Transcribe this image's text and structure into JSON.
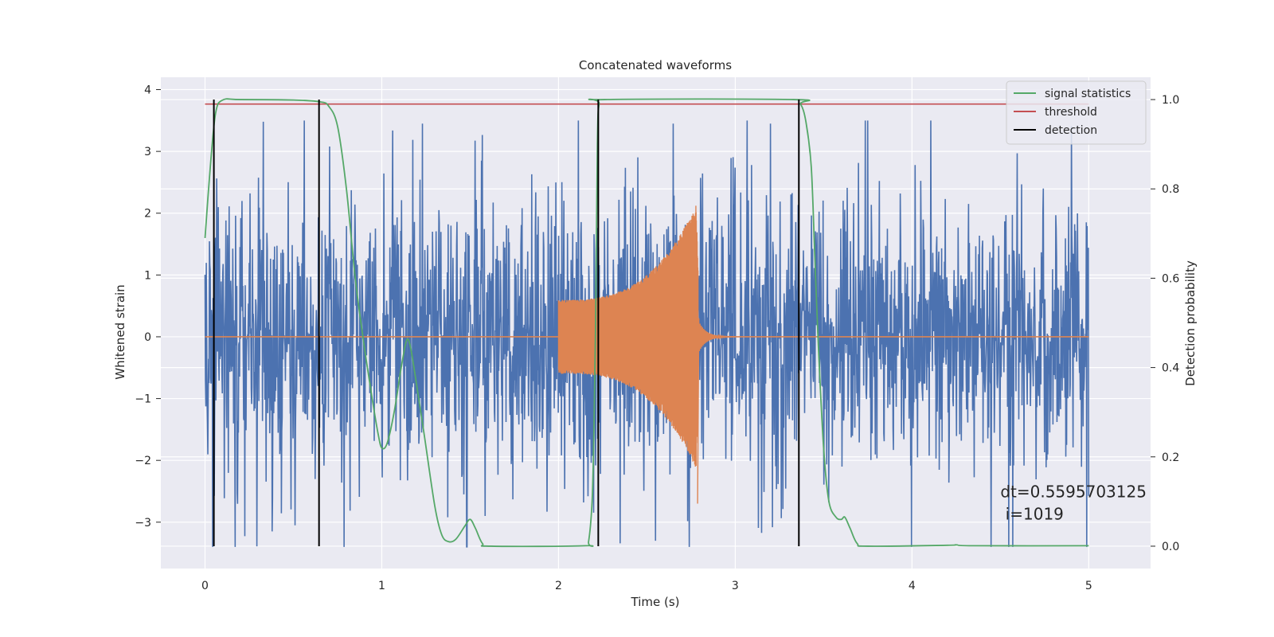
{
  "chart_data": {
    "type": "line",
    "title": "Concatenated waveforms",
    "xlabel": "Time (s)",
    "ylabel": "Whitened strain",
    "y2label": "Detection probability",
    "xlim": [
      -0.25,
      5.35
    ],
    "ylim": [
      -3.75,
      4.2
    ],
    "y2lim": [
      -0.05,
      1.05
    ],
    "x_ticks": [
      0,
      1,
      2,
      3,
      4,
      5
    ],
    "x_tick_labels": [
      "0",
      "1",
      "2",
      "3",
      "4",
      "5"
    ],
    "y_ticks": [
      -3,
      -2,
      -1,
      0,
      1,
      2,
      3,
      4
    ],
    "y_tick_labels": [
      "−3",
      "−2",
      "−1",
      "0",
      "1",
      "2",
      "3",
      "4"
    ],
    "y2_ticks": [
      0.0,
      0.2,
      0.4,
      0.6,
      0.8,
      1.0
    ],
    "y2_tick_labels": [
      "0.0",
      "0.2",
      "0.4",
      "0.6",
      "0.8",
      "1.0"
    ],
    "grid": true,
    "legend_position": "top-right",
    "series": [
      {
        "id": "noise",
        "axis": "left",
        "color": "#4c72b0",
        "description": "whitened noisy strain, x from 0 to 5 s",
        "x_range": [
          0,
          5
        ],
        "envelope": {
          "typical_abs": 1.2,
          "peak_max": 3.5,
          "peak_min": -3.4
        },
        "notable_peaks": [
          {
            "x": 0.33,
            "y": 3.48
          },
          {
            "x": 1.23,
            "y": 3.45
          },
          {
            "x": 2.65,
            "y": 3.45
          },
          {
            "x": 3.2,
            "y": 3.45
          },
          {
            "x": 3.75,
            "y": 3.5
          },
          {
            "x": 0.38,
            "y": -3.15
          },
          {
            "x": 2.55,
            "y": -3.3
          },
          {
            "x": 2.74,
            "y": -3.4
          },
          {
            "x": 4.57,
            "y": -3.4
          }
        ]
      },
      {
        "id": "injected-signal",
        "axis": "left",
        "color": "#dd8452",
        "description": "chirp injection between 2.0 and 2.8 s, zero elsewhere",
        "x_start": 2.0,
        "x_end": 2.79,
        "amplitude_start": 0.6,
        "amplitude_peak": 2.2,
        "peak_min": -2.7,
        "zero_line_x_range": [
          0,
          5
        ]
      },
      {
        "id": "signal-statistics",
        "axis": "right",
        "name": "signal statistics",
        "color": "#55a868",
        "points": [
          [
            0.0,
            0.69
          ],
          [
            0.03,
            0.85
          ],
          [
            0.06,
            0.97
          ],
          [
            0.1,
            0.999
          ],
          [
            0.2,
            1.0
          ],
          [
            0.5,
            0.999
          ],
          [
            0.65,
            0.995
          ],
          [
            0.7,
            0.985
          ],
          [
            0.75,
            0.94
          ],
          [
            0.8,
            0.8
          ],
          [
            0.85,
            0.6
          ],
          [
            0.9,
            0.45
          ],
          [
            0.95,
            0.32
          ],
          [
            0.98,
            0.25
          ],
          [
            1.0,
            0.22
          ],
          [
            1.03,
            0.23
          ],
          [
            1.07,
            0.3
          ],
          [
            1.11,
            0.4
          ],
          [
            1.14,
            0.46
          ],
          [
            1.16,
            0.45
          ],
          [
            1.19,
            0.38
          ],
          [
            1.24,
            0.25
          ],
          [
            1.3,
            0.09
          ],
          [
            1.34,
            0.025
          ],
          [
            1.38,
            0.01
          ],
          [
            1.42,
            0.016
          ],
          [
            1.47,
            0.045
          ],
          [
            1.5,
            0.06
          ],
          [
            1.53,
            0.04
          ],
          [
            1.57,
            0.006
          ],
          [
            1.62,
            0.0
          ],
          [
            2.15,
            0.001
          ],
          [
            2.17,
            0.01
          ],
          [
            2.19,
            0.1
          ],
          [
            2.2,
            0.25
          ],
          [
            2.21,
            0.5
          ],
          [
            2.22,
            0.9
          ],
          [
            2.23,
            0.99
          ],
          [
            2.26,
            1.0
          ],
          [
            3.33,
            1.0
          ],
          [
            3.37,
            0.99
          ],
          [
            3.4,
            0.95
          ],
          [
            3.43,
            0.85
          ],
          [
            3.45,
            0.65
          ],
          [
            3.47,
            0.45
          ],
          [
            3.5,
            0.22
          ],
          [
            3.53,
            0.1
          ],
          [
            3.57,
            0.065
          ],
          [
            3.6,
            0.06
          ],
          [
            3.62,
            0.065
          ],
          [
            3.65,
            0.04
          ],
          [
            3.69,
            0.006
          ],
          [
            3.75,
            0.0
          ],
          [
            4.2,
            0.002
          ],
          [
            4.25,
            0.003
          ],
          [
            4.35,
            0.001
          ],
          [
            5.0,
            0.001
          ]
        ]
      },
      {
        "id": "threshold",
        "axis": "right",
        "name": "threshold",
        "color": "#c44e52",
        "y": 0.99,
        "x_range": [
          0,
          5
        ]
      },
      {
        "id": "detection",
        "axis": "right",
        "name": "detection",
        "color": "#000000",
        "x_positions": [
          0.05,
          0.645,
          2.225,
          3.36
        ],
        "y_range": [
          0,
          1.0
        ]
      }
    ],
    "legend": [
      {
        "label": "signal statistics",
        "color": "#55a868"
      },
      {
        "label": "threshold",
        "color": "#c44e52"
      },
      {
        "label": "detection",
        "color": "#000000"
      }
    ],
    "annotation": {
      "line1": "dt=0.5595703125",
      "line2": " i=1019",
      "x": 4.5,
      "y": -2.6
    }
  }
}
